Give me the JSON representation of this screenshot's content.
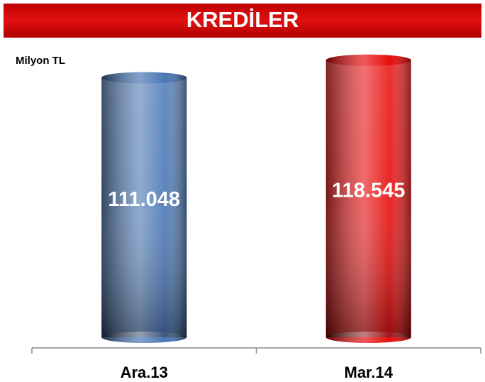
{
  "chart_data": {
    "type": "bar",
    "title": "KREDİLER",
    "y_label": "Milyon TL",
    "categories": [
      "Ara.13",
      "Mar.14"
    ],
    "values": [
      111048,
      118545
    ],
    "value_labels": [
      "111.048",
      "118.545"
    ],
    "colors": [
      "#3f6fb0",
      "#e60000"
    ],
    "ylim": [
      0,
      120000
    ]
  }
}
